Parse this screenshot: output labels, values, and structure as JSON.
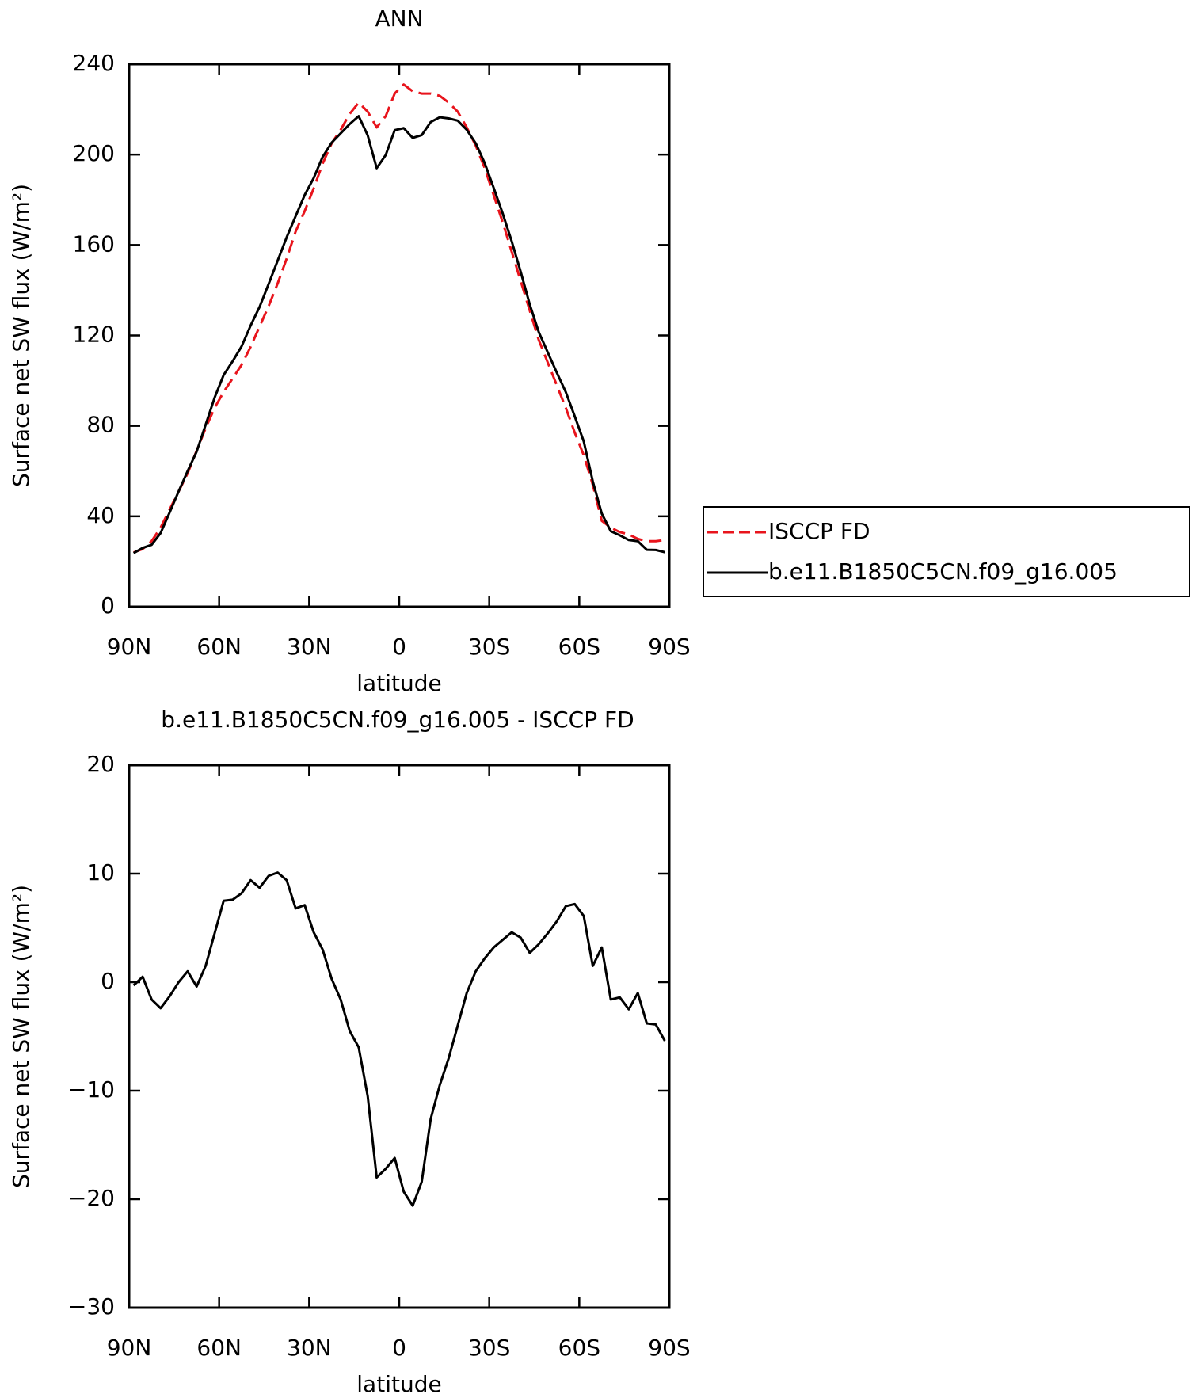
{
  "chart_data": [
    {
      "type": "line",
      "title": "ANN",
      "xlabel": "latitude",
      "ylabel": "Surface net SW flux (W/m²)",
      "x": [
        88.5,
        85.5,
        82.5,
        79.5,
        76.5,
        73.5,
        70.5,
        67.5,
        64.5,
        61.5,
        58.5,
        55.5,
        52.5,
        49.5,
        46.5,
        43.5,
        40.5,
        37.5,
        34.5,
        31.5,
        28.5,
        25.5,
        22.5,
        19.5,
        16.5,
        13.5,
        10.5,
        7.5,
        4.5,
        1.5,
        -1.5,
        -4.5,
        -7.5,
        -10.5,
        -13.5,
        -16.5,
        -19.5,
        -22.5,
        -25.5,
        -28.5,
        -31.5,
        -34.5,
        -37.5,
        -40.5,
        -43.5,
        -46.5,
        -49.5,
        -52.5,
        -55.5,
        -58.5,
        -61.5,
        -64.5,
        -67.5,
        -70.5,
        -73.5,
        -76.5,
        -79.5,
        -82.5,
        -85.5,
        -88.5
      ],
      "series": [
        {
          "name": "ISCCP FD",
          "color": "#e8141c",
          "dash": true,
          "values": [
            24,
            25.5,
            29,
            35,
            43,
            51,
            59,
            69,
            79,
            88,
            95,
            101,
            107,
            115,
            124,
            133,
            143,
            154,
            166,
            175,
            185,
            196,
            205,
            211,
            218,
            223,
            219,
            212,
            217,
            227,
            231,
            228,
            227,
            227,
            226,
            223,
            219,
            212,
            204,
            194,
            182,
            170,
            157,
            144,
            131,
            118,
            108,
            98,
            88,
            77,
            67,
            54,
            38,
            35,
            33,
            32,
            30,
            29,
            29,
            29.5
          ]
        },
        {
          "name": "b.e11.B1850C5CN.f09_g16.005",
          "color": "#000000",
          "dash": false,
          "values": [
            23.7,
            26,
            27.4,
            32.6,
            41.7,
            51,
            60,
            68.6,
            80.5,
            92.5,
            102.5,
            108.6,
            115.2,
            124.4,
            132.7,
            142.8,
            153.1,
            163.4,
            172.8,
            182.1,
            189.6,
            199,
            205.3,
            209.4,
            213.5,
            217,
            208.5,
            194,
            199.8,
            210.8,
            211.7,
            207.4,
            208.6,
            214.4,
            216.5,
            216,
            215,
            211,
            205,
            196.2,
            185.2,
            173.9,
            161.6,
            148.1,
            133.7,
            121.5,
            112.5,
            103.6,
            95,
            84.2,
            73.1,
            55.5,
            41.2,
            33.4,
            31.6,
            29.5,
            29,
            25.2,
            25.1,
            24.1
          ]
        }
      ],
      "xlim": [
        90,
        -90
      ],
      "xticks": [
        {
          "value": 90,
          "label": "90N"
        },
        {
          "value": 60,
          "label": "60N"
        },
        {
          "value": 30,
          "label": "30N"
        },
        0,
        {
          "value": -30,
          "label": "30S"
        },
        {
          "value": -60,
          "label": "60S"
        },
        {
          "value": -90,
          "label": "90S"
        }
      ],
      "ylim": [
        0,
        240
      ],
      "yticks": [
        0,
        40,
        80,
        120,
        160,
        200,
        240
      ],
      "legend": "right"
    },
    {
      "type": "line",
      "title": "b.e11.B1850C5CN.f09_g16.005 - ISCCP FD",
      "xlabel": "latitude",
      "ylabel": "Surface net SW flux (W/m²)",
      "x": [
        88.5,
        85.5,
        82.5,
        79.5,
        76.5,
        73.5,
        70.5,
        67.5,
        64.5,
        61.5,
        58.5,
        55.5,
        52.5,
        49.5,
        46.5,
        43.5,
        40.5,
        37.5,
        34.5,
        31.5,
        28.5,
        25.5,
        22.5,
        19.5,
        16.5,
        13.5,
        10.5,
        7.5,
        4.5,
        1.5,
        -1.5,
        -4.5,
        -7.5,
        -10.5,
        -13.5,
        -16.5,
        -19.5,
        -22.5,
        -25.5,
        -28.5,
        -31.5,
        -34.5,
        -37.5,
        -40.5,
        -43.5,
        -46.5,
        -49.5,
        -52.5,
        -55.5,
        -58.5,
        -61.5,
        -64.5,
        -67.5,
        -70.5,
        -73.5,
        -76.5,
        -79.5,
        -82.5,
        -85.5,
        -88.5
      ],
      "values": [
        -0.3,
        0.5,
        -1.6,
        -2.4,
        -1.3,
        0,
        1,
        -0.4,
        1.5,
        4.5,
        7.5,
        7.6,
        8.2,
        9.4,
        8.7,
        9.8,
        10.1,
        9.4,
        6.8,
        7.1,
        4.6,
        3,
        0.3,
        -1.6,
        -4.5,
        -6,
        -10.5,
        -18,
        -17.2,
        -16.2,
        -19.3,
        -20.6,
        -18.4,
        -12.6,
        -9.5,
        -7,
        -4,
        -1,
        1,
        2.2,
        3.2,
        3.9,
        4.6,
        4.1,
        2.7,
        3.5,
        4.5,
        5.6,
        7,
        7.2,
        6.1,
        1.5,
        3.2,
        -1.6,
        -1.4,
        -2.5,
        -1,
        -3.8,
        -3.9,
        -5.4
      ],
      "color": "#000000",
      "xlim": [
        90,
        -90
      ],
      "xticks": [
        {
          "value": 90,
          "label": "90N"
        },
        {
          "value": 60,
          "label": "60N"
        },
        {
          "value": 30,
          "label": "30N"
        },
        0,
        {
          "value": -30,
          "label": "30S"
        },
        {
          "value": -60,
          "label": "60S"
        },
        {
          "value": -90,
          "label": "90S"
        }
      ],
      "ylim": [
        -30,
        20
      ],
      "yticks": [
        {
          "value": -30,
          "label": "−30"
        },
        {
          "value": -20,
          "label": "−20"
        },
        {
          "value": -10,
          "label": "−10"
        },
        0,
        10,
        20
      ]
    }
  ]
}
